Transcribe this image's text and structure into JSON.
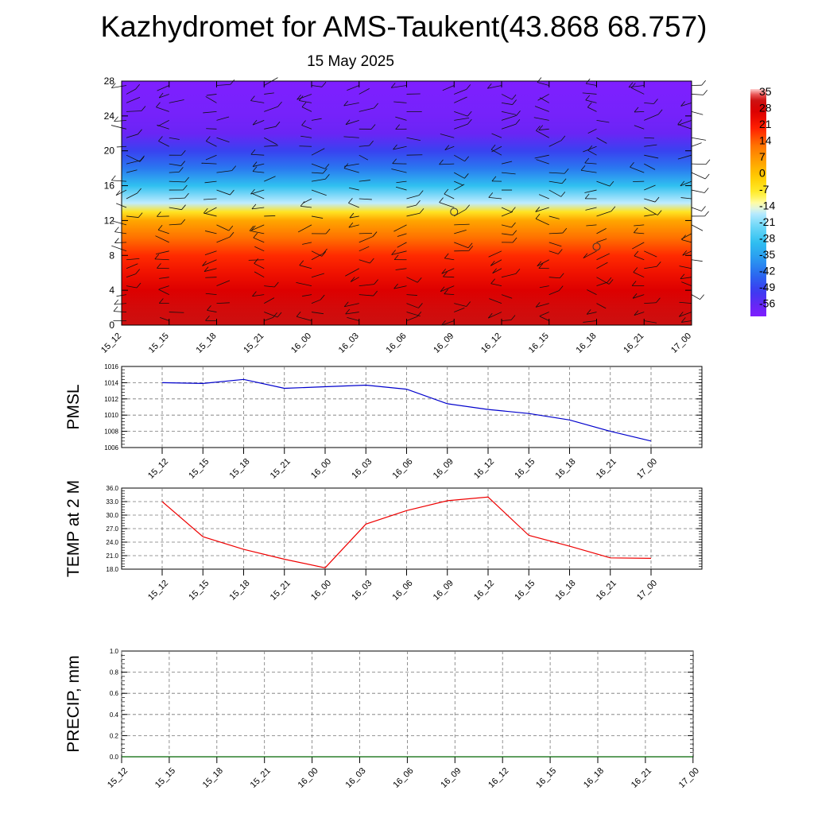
{
  "title": "Kazhydromet for AMS-Taukent(43.868 68.757)",
  "subtitle": "15 May 2025",
  "chart_data": [
    {
      "type": "heatmap",
      "title": "",
      "ylim": [
        0,
        28
      ],
      "y_ticks": [
        "0",
        "4",
        "8",
        "12",
        "16",
        "20",
        "24",
        "28"
      ],
      "x_ticks": [
        "15_12",
        "15_15",
        "15_18",
        "15_21",
        "16_00",
        "16_03",
        "16_06",
        "16_09",
        "16_12",
        "16_15",
        "16_18",
        "16_21",
        "17_00"
      ],
      "colorbar": {
        "labels": [
          "35",
          "28",
          "21",
          "14",
          "7",
          "0",
          "-7",
          "-14",
          "-21",
          "-28",
          "-35",
          "-42",
          "-49",
          "-56"
        ],
        "range": [
          -60,
          38
        ]
      },
      "temperature_profile": {
        "levels": [
          0,
          2,
          4,
          6,
          8,
          10,
          12,
          13,
          14,
          16,
          18,
          20,
          22,
          24,
          26,
          28
        ],
        "values": [
          33,
          31,
          28,
          24,
          20,
          14,
          6,
          -5,
          -15,
          -28,
          -40,
          -48,
          -56,
          -58,
          -59,
          -60
        ]
      },
      "calm_markers": [
        {
          "time": "16_09",
          "level": 13
        },
        {
          "time": "16_18",
          "level": 9
        }
      ]
    },
    {
      "type": "line",
      "ylabel": "PMSL",
      "ylim": [
        1006,
        1016
      ],
      "y_ticks": [
        "1006",
        "1008",
        "1010",
        "1012",
        "1014",
        "1016"
      ],
      "categories": [
        "15_12",
        "15_15",
        "15_18",
        "15_21",
        "16_00",
        "16_03",
        "16_06",
        "16_09",
        "16_12",
        "16_15",
        "16_18",
        "16_21",
        "17_00"
      ],
      "series": [
        {
          "color": "#0000cc",
          "values": [
            1014.0,
            1013.9,
            1014.4,
            1013.3,
            1013.5,
            1013.7,
            1013.2,
            1011.4,
            1010.7,
            1010.2,
            1009.4,
            1008.0,
            1006.8
          ]
        }
      ]
    },
    {
      "type": "line",
      "ylabel": "TEMP at 2 M",
      "ylim": [
        18,
        36
      ],
      "y_ticks": [
        "18.0",
        "21.0",
        "24.0",
        "27.0",
        "30.0",
        "33.0",
        "36.0"
      ],
      "categories": [
        "15_12",
        "15_15",
        "15_18",
        "15_21",
        "16_00",
        "16_03",
        "16_06",
        "16_09",
        "16_12",
        "16_15",
        "16_18",
        "16_21",
        "17_00"
      ],
      "series": [
        {
          "color": "#ee0000",
          "values": [
            33.0,
            25.2,
            22.4,
            20.2,
            18.3,
            28.0,
            31.0,
            33.2,
            34.0,
            25.5,
            23.1,
            20.5,
            20.4
          ]
        }
      ]
    },
    {
      "type": "line",
      "ylabel": "PRECIP, mm",
      "ylim": [
        0,
        1
      ],
      "y_ticks": [
        "0.0",
        "0.2",
        "0.4",
        "0.6",
        "0.8",
        "1.0"
      ],
      "x_ticks": [
        "15_12",
        "15_15",
        "15_18",
        "15_21",
        "16_00",
        "16_03",
        "16_06",
        "16_09",
        "16_12",
        "16_15",
        "16_18",
        "16_21",
        "17_00"
      ],
      "series": [
        {
          "color": "#006600",
          "values": [
            0,
            0,
            0,
            0,
            0,
            0,
            0,
            0,
            0,
            0,
            0,
            0,
            0
          ]
        }
      ]
    }
  ]
}
